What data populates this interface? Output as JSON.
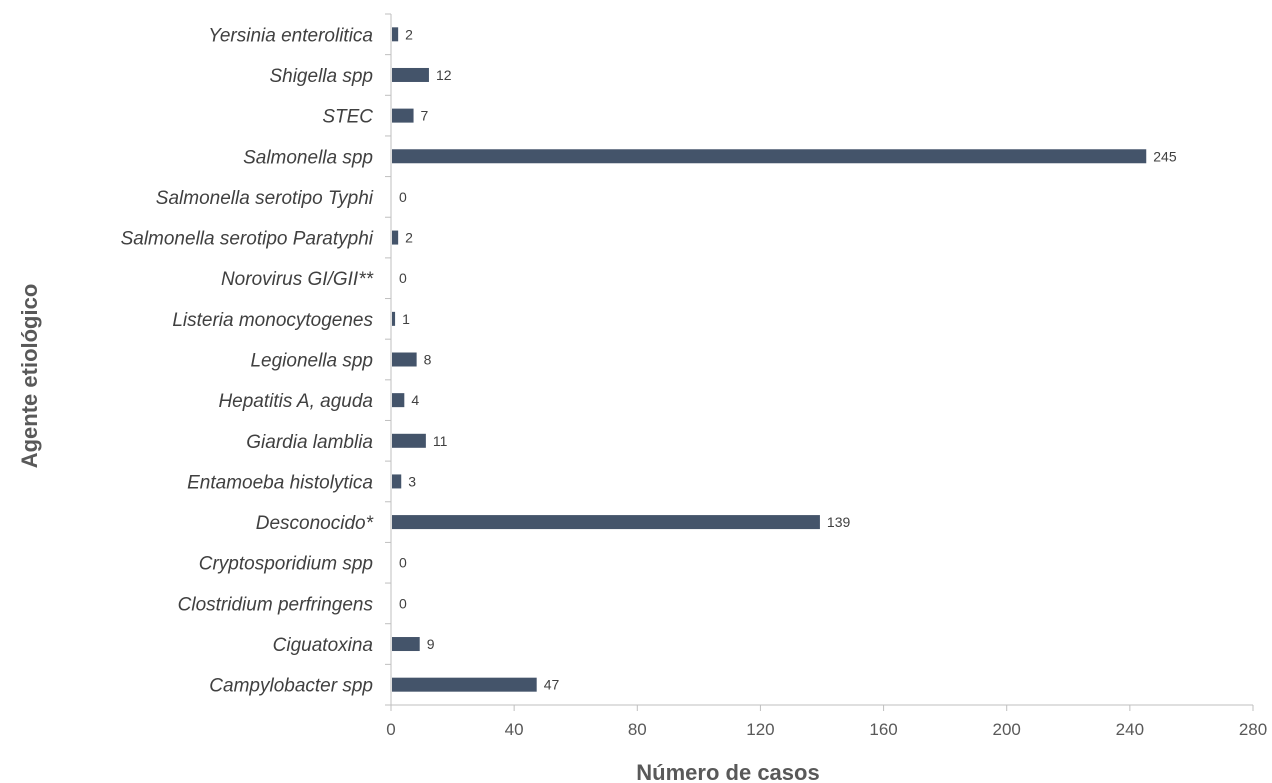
{
  "chart_data": {
    "type": "bar",
    "orientation": "horizontal",
    "title": "",
    "xlabel": "Número de casos",
    "ylabel": "Agente etiológico",
    "xlim": [
      0,
      280
    ],
    "xticks": [
      0,
      40,
      80,
      120,
      160,
      200,
      240,
      280
    ],
    "grid": false,
    "legend": "none",
    "bar_color": "#44546a",
    "categories": [
      "Yersinia enterolitica",
      "Shigella spp",
      "STEC",
      "Salmonella spp",
      "Salmonella serotipo Typhi",
      "Salmonella serotipo Paratyphi",
      "Norovirus GI/GII**",
      "Listeria monocytogenes",
      "Legionella spp",
      "Hepatitis A, aguda",
      "Giardia lamblia",
      "Entamoeba histolytica",
      "Desconocido*",
      "Cryptosporidium spp",
      "Clostridium perfringens",
      "Ciguatoxina",
      "Campylobacter spp"
    ],
    "values": [
      2,
      12,
      7,
      245,
      0,
      2,
      0,
      1,
      8,
      4,
      11,
      3,
      139,
      0,
      0,
      9,
      47
    ]
  }
}
